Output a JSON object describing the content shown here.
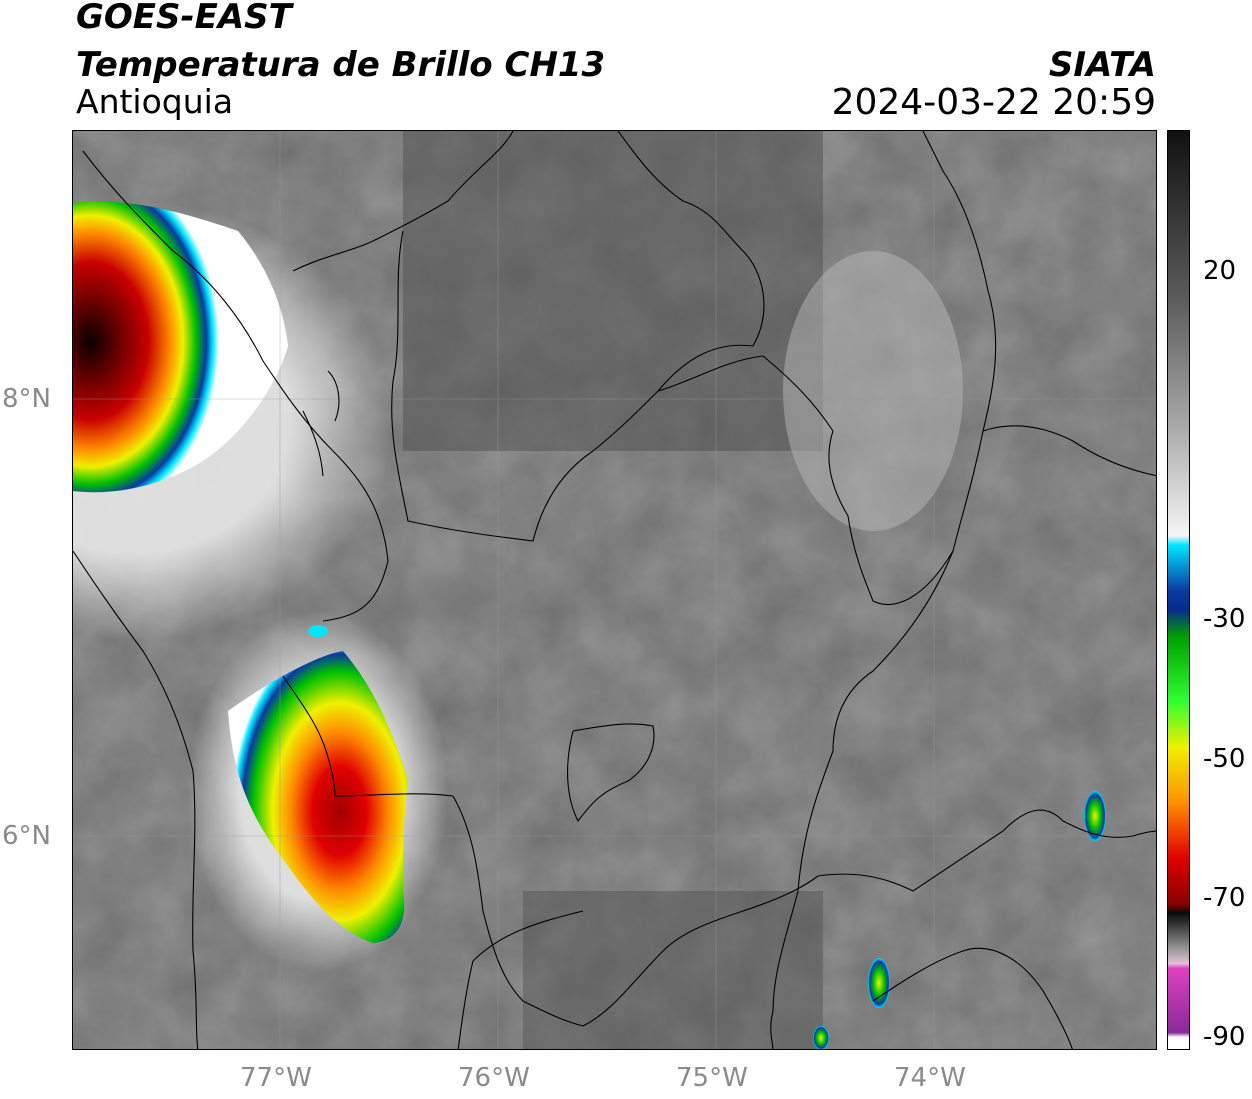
{
  "header": {
    "satellite": "GOES-EAST",
    "product": "Temperatura de Brillo CH13",
    "region": "Antioquia",
    "organization": "SIATA",
    "datetime": "2024-03-22 20:59"
  },
  "map": {
    "longitude_labels": [
      "77°W",
      "76°W",
      "75°W",
      "74°W"
    ],
    "latitude_labels": [
      "8°N",
      "6°N"
    ],
    "features": [
      "coastline",
      "department-boundaries",
      "brightness-temperature-field",
      "cold-cloud-tops"
    ]
  },
  "colorbar": {
    "tick_labels": [
      "20",
      "-30",
      "-50",
      "-70",
      "-90"
    ],
    "colors": {
      "warm": "#1a1a1a",
      "neutral": "#ffffff",
      "cyan": "#00e5ff",
      "blue": "#0a2a8c",
      "green": "#00c000",
      "yellow": "#f0f000",
      "orange": "#ff8c00",
      "red": "#d80000",
      "darkred": "#6a0000",
      "magenta": "#e040c0",
      "purple": "#8a2a9a"
    }
  }
}
